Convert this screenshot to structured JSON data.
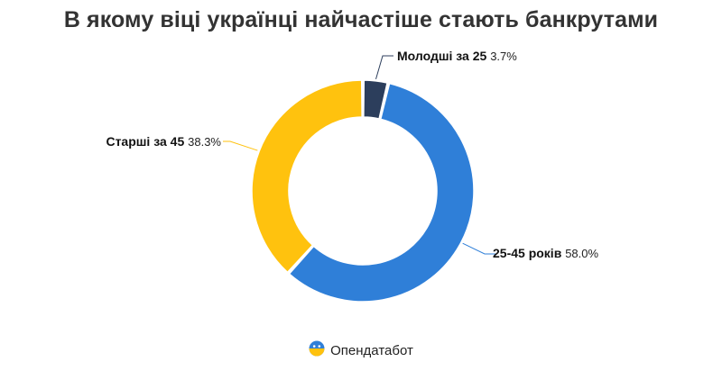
{
  "title": "В якому віці українці найчастіше стають банкрутами",
  "chart_data": {
    "type": "pie",
    "donut": true,
    "slices": [
      {
        "label": "Молодші за 25",
        "value": 3.7,
        "value_text": "3.7%",
        "color": "#2c3e5c"
      },
      {
        "label": "25-45 років",
        "value": 58.0,
        "value_text": "58.0%",
        "color": "#2f7fd8"
      },
      {
        "label": "Старші за 45",
        "value": 38.3,
        "value_text": "38.3%",
        "color": "#ffc20e"
      }
    ]
  },
  "footer": {
    "brand": "Опендатабот",
    "logo_icon": "opendatabot-logo-icon",
    "logo_colors": [
      "#2f7fd8",
      "#ffc20e"
    ]
  }
}
